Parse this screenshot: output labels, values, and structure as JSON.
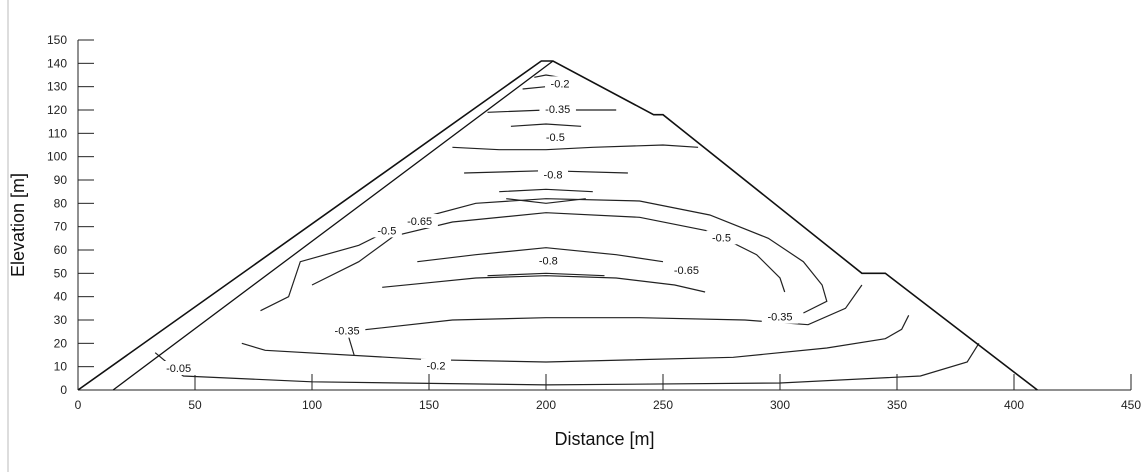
{
  "chart_data": {
    "type": "contour",
    "title": "",
    "xlabel": "Distance [m]",
    "ylabel": "Elevation [m]",
    "xlim": [
      0,
      450
    ],
    "ylim": [
      0,
      150
    ],
    "x_ticks": [
      0,
      50,
      100,
      150,
      200,
      250,
      300,
      350,
      400,
      450
    ],
    "y_ticks": [
      0,
      10,
      20,
      30,
      40,
      50,
      60,
      70,
      80,
      90,
      100,
      110,
      120,
      130,
      140,
      150
    ],
    "grid": false,
    "dam_outline": [
      [
        0,
        0
      ],
      [
        198,
        141
      ],
      [
        203,
        141
      ],
      [
        246,
        118
      ],
      [
        250,
        118
      ],
      [
        335,
        50
      ],
      [
        345,
        50
      ],
      [
        410,
        0
      ]
    ],
    "inner_face": [
      [
        15,
        0
      ],
      [
        203,
        141
      ]
    ],
    "contour_levels": [
      "-0.05",
      "-0.2",
      "-0.35",
      "-0.5",
      "-0.65",
      "-0.8"
    ],
    "contour_labels": [
      {
        "text": "-0.2",
        "x": 206,
        "y": 131
      },
      {
        "text": "-0.35",
        "x": 205,
        "y": 120
      },
      {
        "text": "-0.5",
        "x": 204,
        "y": 108
      },
      {
        "text": "-0.8",
        "x": 203,
        "y": 92
      },
      {
        "text": "-0.65",
        "x": 146,
        "y": 72
      },
      {
        "text": "-0.5",
        "x": 132,
        "y": 68
      },
      {
        "text": "-0.8",
        "x": 201,
        "y": 55
      },
      {
        "text": "-0.5",
        "x": 275,
        "y": 65
      },
      {
        "text": "-0.65",
        "x": 260,
        "y": 51
      },
      {
        "text": "-0.35",
        "x": 115,
        "y": 25
      },
      {
        "text": "-0.35",
        "x": 300,
        "y": 31
      },
      {
        "text": "-0.2",
        "x": 153,
        "y": 10
      },
      {
        "text": "-0.05",
        "x": 43,
        "y": 9
      }
    ],
    "contours": [
      [
        [
          33,
          16
        ],
        [
          45,
          6
        ],
        [
          100,
          3.5
        ],
        [
          200,
          2.2
        ],
        [
          300,
          3
        ],
        [
          360,
          6
        ],
        [
          380,
          12
        ],
        [
          385,
          20
        ]
      ],
      [
        [
          70,
          20
        ],
        [
          80,
          17
        ],
        [
          150,
          13
        ],
        [
          200,
          12
        ],
        [
          280,
          14
        ],
        [
          320,
          18
        ],
        [
          345,
          22
        ],
        [
          352,
          26
        ],
        [
          355,
          32
        ]
      ],
      [
        [
          118,
          15
        ],
        [
          115,
          25
        ],
        [
          160,
          30
        ],
        [
          200,
          31
        ],
        [
          240,
          31
        ],
        [
          285,
          30
        ],
        [
          312,
          28
        ],
        [
          328,
          35
        ],
        [
          335,
          45
        ]
      ],
      [
        [
          78,
          34
        ],
        [
          90,
          40
        ],
        [
          95,
          55
        ],
        [
          120,
          62
        ],
        [
          140,
          72
        ],
        [
          170,
          80
        ],
        [
          200,
          82
        ],
        [
          240,
          81
        ],
        [
          270,
          75
        ],
        [
          295,
          65
        ],
        [
          310,
          55
        ],
        [
          318,
          45
        ],
        [
          320,
          38
        ],
        [
          310,
          33
        ]
      ],
      [
        [
          100,
          45
        ],
        [
          120,
          55
        ],
        [
          135,
          66
        ],
        [
          160,
          72
        ],
        [
          200,
          76
        ],
        [
          240,
          74
        ],
        [
          270,
          68
        ],
        [
          290,
          58
        ],
        [
          300,
          48
        ],
        [
          302,
          42
        ]
      ],
      [
        [
          130,
          44
        ],
        [
          150,
          46
        ],
        [
          170,
          48
        ],
        [
          200,
          49
        ],
        [
          230,
          48
        ],
        [
          255,
          45
        ],
        [
          268,
          42
        ]
      ],
      [
        [
          145,
          55
        ],
        [
          170,
          58
        ],
        [
          200,
          61
        ],
        [
          230,
          58
        ],
        [
          250,
          55
        ]
      ],
      [
        [
          175,
          49
        ],
        [
          200,
          50
        ],
        [
          225,
          49
        ]
      ],
      [
        [
          180,
          85
        ],
        [
          200,
          86
        ],
        [
          220,
          85
        ]
      ],
      [
        [
          183,
          82
        ],
        [
          200,
          80
        ],
        [
          217,
          82
        ]
      ],
      [
        [
          165,
          93
        ],
        [
          200,
          94
        ],
        [
          235,
          93
        ]
      ],
      [
        [
          160,
          104
        ],
        [
          180,
          103
        ],
        [
          200,
          103
        ],
        [
          220,
          104
        ],
        [
          250,
          105
        ],
        [
          265,
          104
        ]
      ],
      [
        [
          185,
          113
        ],
        [
          200,
          114
        ],
        [
          215,
          113
        ]
      ],
      [
        [
          175,
          119
        ],
        [
          200,
          120
        ],
        [
          230,
          120
        ]
      ],
      [
        [
          190,
          129
        ],
        [
          200,
          130
        ],
        [
          212,
          130
        ]
      ],
      [
        [
          195,
          134
        ],
        [
          200,
          135
        ],
        [
          206,
          134
        ]
      ]
    ]
  }
}
